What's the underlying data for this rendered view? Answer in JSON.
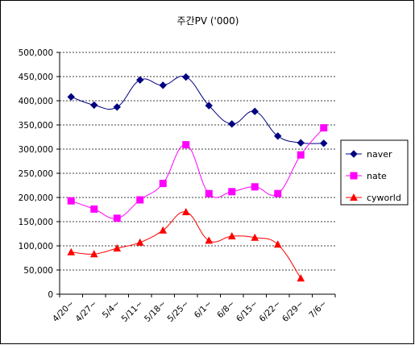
{
  "chart_data": {
    "type": "line",
    "title": "주간PV ('000)",
    "xlabel": "",
    "ylabel": "",
    "categories": [
      "4/20~",
      "4/27~",
      "5/4~",
      "5/11~",
      "5/18~",
      "5/25~",
      "6/1~",
      "6/8~",
      "6/15~",
      "6/22~",
      "6/29~",
      "7/6~"
    ],
    "ylim": [
      0,
      500000
    ],
    "yticks": [
      0,
      50000,
      100000,
      150000,
      200000,
      250000,
      300000,
      350000,
      400000,
      450000,
      500000
    ],
    "ytick_labels": [
      "0",
      "50,000",
      "100,000",
      "150,000",
      "200,000",
      "250,000",
      "300,000",
      "350,000",
      "400,000",
      "450,000",
      "500,000"
    ],
    "grid": true,
    "legend_position": "right",
    "series": [
      {
        "name": "naver",
        "color": "#000080",
        "marker": "diamond",
        "values": [
          408000,
          391000,
          387000,
          443000,
          432000,
          449000,
          390000,
          352000,
          378000,
          327000,
          313000,
          312000
        ]
      },
      {
        "name": "nate",
        "color": "#FF00FF",
        "marker": "square",
        "values": [
          193000,
          176000,
          157000,
          195000,
          229000,
          309000,
          208000,
          212000,
          222000,
          208000,
          288000,
          344000
        ]
      },
      {
        "name": "cyworld",
        "color": "#FF0000",
        "marker": "triangle",
        "values": [
          87000,
          83000,
          95000,
          107000,
          132000,
          170000,
          111000,
          120000,
          117000,
          103000,
          33000,
          null
        ]
      }
    ]
  }
}
